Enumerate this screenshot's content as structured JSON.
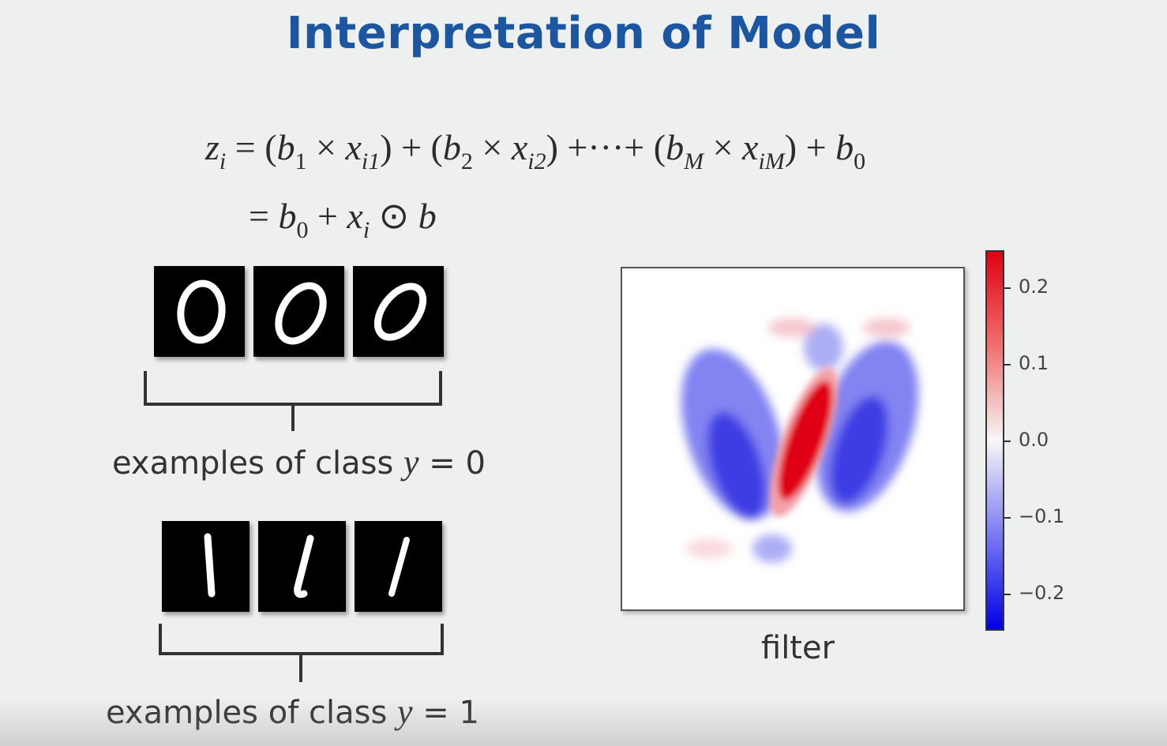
{
  "title": "Interpretation of Model",
  "equation": {
    "line1": {
      "z": "z",
      "i": "i",
      "eq": "=",
      "b": "b",
      "x": "x",
      "times": "×",
      "plus": "+",
      "dots": "+···+",
      "s1": "1",
      "i1": "i1",
      "s2": "2",
      "i2": "i2",
      "sM": "M",
      "iM": "iM",
      "s0": "0",
      "lp": "(",
      "rp": ")"
    },
    "line2": {
      "eq": "=",
      "b": "b",
      "s0": "0",
      "plus": "+",
      "x": "x",
      "i": "i",
      "odot": "⊙"
    }
  },
  "examples": [
    {
      "caption_prefix": "examples of class",
      "var": "y",
      "equals": "=",
      "value": "0"
    },
    {
      "caption_prefix": "examples of class",
      "var": "y",
      "equals": "=",
      "value": "1"
    }
  ],
  "filter": {
    "caption": "filter",
    "colormap": {
      "max_color": "#e00012",
      "mid_color": "#f7f7f7",
      "min_color": "#0000e6"
    },
    "colorbar_ticks": [
      "0.2",
      "0.1",
      "0.0",
      "−0.1",
      "−0.2"
    ]
  }
}
